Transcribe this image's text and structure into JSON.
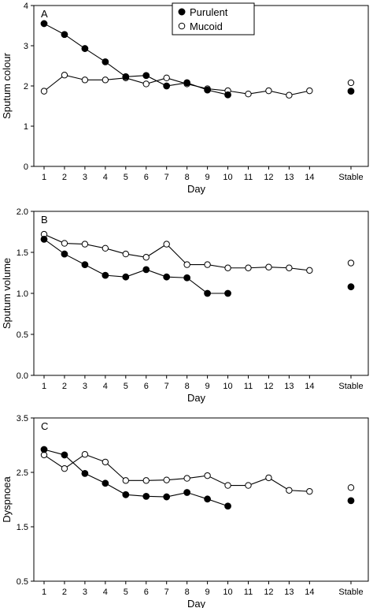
{
  "chart_data": [
    {
      "type": "line",
      "panel_label": "A",
      "ylabel": "Sputum colour",
      "xlabel": "Day",
      "categories": [
        "1",
        "2",
        "3",
        "4",
        "5",
        "6",
        "7",
        "8",
        "9",
        "10",
        "11",
        "12",
        "13",
        "14",
        "Stable"
      ],
      "ylim": [
        0,
        4
      ],
      "yticks": [
        "0",
        "1",
        "2",
        "3",
        "4"
      ],
      "legend": {
        "position": "top-center",
        "entries": [
          "Purulent",
          "Mucoid"
        ]
      },
      "series": [
        {
          "name": "Purulent",
          "marker": "filled",
          "values": [
            3.55,
            3.28,
            2.93,
            2.6,
            2.23,
            2.26,
            2.0,
            2.08,
            1.9,
            1.78,
            null,
            null,
            null,
            null,
            1.87
          ]
        },
        {
          "name": "Mucoid",
          "marker": "open",
          "values": [
            1.87,
            2.27,
            2.15,
            2.15,
            2.2,
            2.05,
            2.2,
            2.05,
            1.93,
            1.88,
            1.8,
            1.88,
            1.77,
            1.88,
            2.08
          ]
        }
      ]
    },
    {
      "type": "line",
      "panel_label": "B",
      "ylabel": "Sputum volume",
      "xlabel": "Day",
      "categories": [
        "1",
        "2",
        "3",
        "4",
        "5",
        "6",
        "7",
        "8",
        "9",
        "10",
        "11",
        "12",
        "13",
        "14",
        "Stable"
      ],
      "ylim": [
        0,
        2
      ],
      "yticks": [
        "0.0",
        "0.5",
        "1.0",
        "1.5",
        "2.0"
      ],
      "series": [
        {
          "name": "Purulent",
          "marker": "filled",
          "values": [
            1.66,
            1.48,
            1.35,
            1.22,
            1.2,
            1.29,
            1.2,
            1.19,
            1.0,
            1.0,
            null,
            null,
            null,
            null,
            1.08
          ]
        },
        {
          "name": "Mucoid",
          "marker": "open",
          "values": [
            1.72,
            1.61,
            1.6,
            1.55,
            1.48,
            1.44,
            1.6,
            1.35,
            1.35,
            1.31,
            1.31,
            1.32,
            1.31,
            1.28,
            1.37
          ]
        }
      ]
    },
    {
      "type": "line",
      "panel_label": "C",
      "ylabel": "Dyspnoea",
      "xlabel": "Day",
      "categories": [
        "1",
        "2",
        "3",
        "4",
        "5",
        "6",
        "7",
        "8",
        "9",
        "10",
        "11",
        "12",
        "13",
        "14",
        "Stable"
      ],
      "ylim": [
        0.5,
        3.5
      ],
      "yticks": [
        "0.5",
        "1.5",
        "2.5",
        "3.5"
      ],
      "series": [
        {
          "name": "Purulent",
          "marker": "filled",
          "values": [
            2.92,
            2.82,
            2.48,
            2.3,
            2.09,
            2.06,
            2.05,
            2.13,
            2.01,
            1.88,
            null,
            null,
            null,
            null,
            1.98
          ]
        },
        {
          "name": "Mucoid",
          "marker": "open",
          "values": [
            2.82,
            2.57,
            2.83,
            2.69,
            2.35,
            2.35,
            2.36,
            2.39,
            2.44,
            2.26,
            2.26,
            2.4,
            2.17,
            2.15,
            2.22
          ]
        }
      ]
    }
  ]
}
